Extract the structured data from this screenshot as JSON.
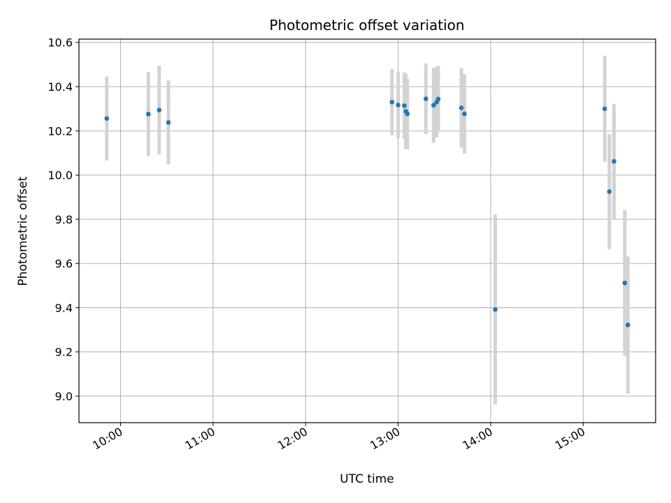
{
  "chart_data": {
    "type": "scatter",
    "title": "Photometric offset variation",
    "xlabel": "UTC time",
    "ylabel": "Photometric offset",
    "xlim": [
      "09:33",
      "15:47"
    ],
    "ylim": [
      8.88,
      10.615
    ],
    "x_ticks": [
      "10:00",
      "11:00",
      "12:00",
      "13:00",
      "14:00",
      "15:00"
    ],
    "y_ticks": [
      9.0,
      9.2,
      9.4,
      9.6,
      9.8,
      10.0,
      10.2,
      10.4,
      10.6
    ],
    "y_tick_labels": [
      "9.0",
      "9.2",
      "9.4",
      "9.6",
      "9.8",
      "10.0",
      "10.2",
      "10.4",
      "10.6"
    ],
    "grid": true,
    "colors": {
      "point": "#1f77b4",
      "errorbar": "#d3d3d3",
      "grid": "#b0b0b0",
      "axes": "#000000"
    },
    "points": [
      {
        "x": "09:51",
        "y": 10.256,
        "err": 0.19
      },
      {
        "x": "10:18",
        "y": 10.276,
        "err": 0.19
      },
      {
        "x": "10:25",
        "y": 10.294,
        "err": 0.2
      },
      {
        "x": "10:31",
        "y": 10.238,
        "err": 0.19
      },
      {
        "x": "12:56",
        "y": 10.33,
        "err": 0.15
      },
      {
        "x": "13:00",
        "y": 10.317,
        "err": 0.15
      },
      {
        "x": "13:04",
        "y": 10.314,
        "err": 0.15
      },
      {
        "x": "13:05",
        "y": 10.288,
        "err": 0.17
      },
      {
        "x": "13:06",
        "y": 10.277,
        "err": 0.16
      },
      {
        "x": "13:18",
        "y": 10.345,
        "err": 0.16
      },
      {
        "x": "13:23",
        "y": 10.316,
        "err": 0.17
      },
      {
        "x": "13:25",
        "y": 10.33,
        "err": 0.16
      },
      {
        "x": "13:26",
        "y": 10.344,
        "err": 0.15
      },
      {
        "x": "13:41",
        "y": 10.304,
        "err": 0.18
      },
      {
        "x": "13:43",
        "y": 10.277,
        "err": 0.18
      },
      {
        "x": "14:03",
        "y": 9.392,
        "err": 0.43
      },
      {
        "x": "15:14",
        "y": 10.3,
        "err": 0.24
      },
      {
        "x": "15:17",
        "y": 9.925,
        "err": 0.26
      },
      {
        "x": "15:20",
        "y": 10.062,
        "err": 0.26
      },
      {
        "x": "15:27",
        "y": 9.512,
        "err": 0.33
      },
      {
        "x": "15:29",
        "y": 9.322,
        "err": 0.31
      }
    ]
  }
}
